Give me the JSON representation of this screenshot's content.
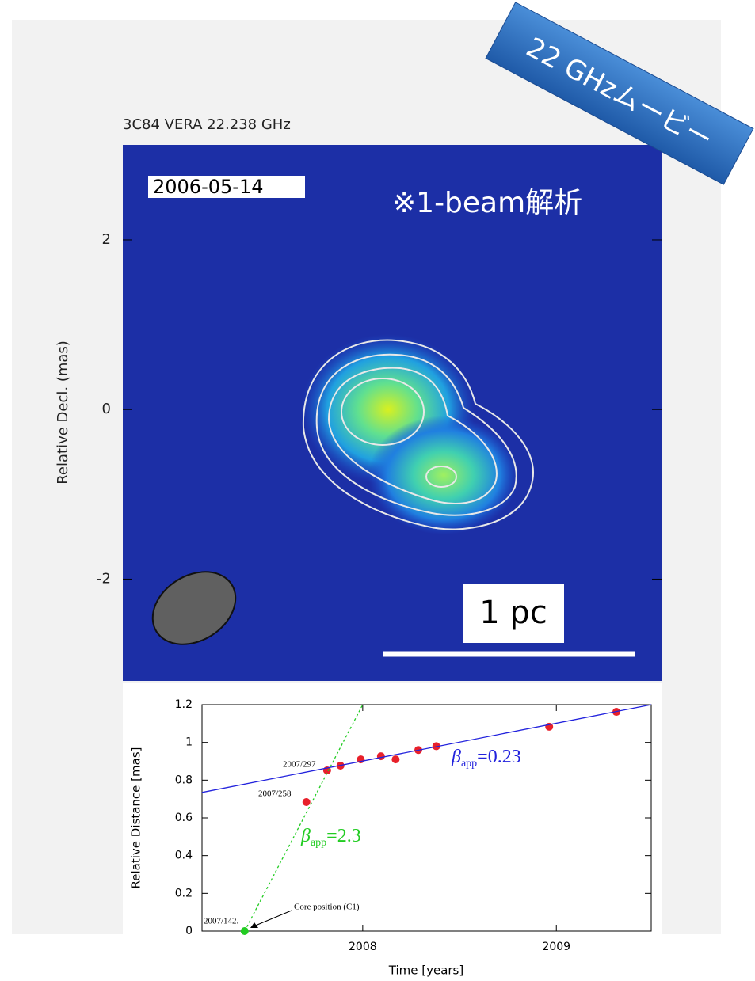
{
  "banner": "22 GHzムービー",
  "chart_data": [
    {
      "type": "image",
      "title": "3C84 VERA 22.238 GHz",
      "ylabel": "Relative Decl. (mas)",
      "ylim": [
        -3.2,
        3.12
      ],
      "yticks": [
        -2,
        0,
        2
      ],
      "annotations": [
        "2006-05-14",
        "※1-beam解析",
        "1 pc"
      ]
    },
    {
      "type": "scatter",
      "xlabel": "Time [years]",
      "ylabel": "Relative Distance [mas]",
      "xlim": [
        2007.17,
        2009.49
      ],
      "ylim": [
        0,
        1.2
      ],
      "xticks": [
        2008,
        2009
      ],
      "yticks": [
        0,
        0.2,
        0.4,
        0.6,
        0.8,
        1,
        1.2
      ],
      "series": [
        {
          "style": "points",
          "color": "#e8202a",
          "x": [
            2007.709,
            2007.816,
            2007.885,
            2007.99,
            2008.094,
            2008.17,
            2008.287,
            2008.38,
            2008.963,
            2009.31
          ],
          "values": [
            0.684,
            0.852,
            0.877,
            0.91,
            0.927,
            0.91,
            0.96,
            0.98,
            1.083,
            1.162
          ]
        },
        {
          "style": "points",
          "color": "#22cc22",
          "x": [
            2007.39
          ],
          "values": [
            0
          ]
        },
        {
          "style": "line",
          "color": "#2222dd",
          "x": [
            2007.17,
            2009.49
          ],
          "values": [
            0.735,
            1.2
          ]
        },
        {
          "style": "dashed",
          "color": "#22cc22",
          "x": [
            2007.39,
            2008.0
          ],
          "values": [
            0,
            1.2
          ]
        }
      ],
      "annotations": [
        "2007/297",
        "2007/258",
        "2007/142.",
        "Core position (C1)"
      ],
      "beta_labels": [
        {
          "symbol": "β",
          "subscript": "app",
          "text": "=0.23"
        },
        {
          "symbol": "β",
          "subscript": "app",
          "text": "=2.3"
        }
      ]
    }
  ]
}
